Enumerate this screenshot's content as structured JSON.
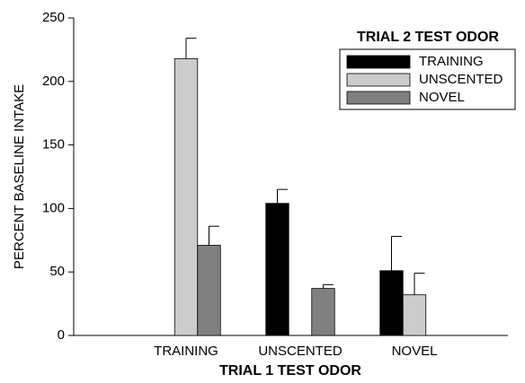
{
  "chart_data": {
    "type": "bar",
    "x_label": "TRIAL 1 TEST ODOR",
    "y_label": "PERCENT BASELINE INTAKE",
    "legend_title": "TRIAL 2 TEST ODOR",
    "legend_position": "upper right",
    "categories": [
      "TRAINING",
      "UNSCENTED",
      "NOVEL"
    ],
    "series": [
      {
        "name": "TRAINING",
        "color": "#000000",
        "values": [
          null,
          104,
          51
        ],
        "errors": [
          null,
          11,
          27
        ]
      },
      {
        "name": "UNSCENTED",
        "color": "#cccccc",
        "values": [
          218,
          null,
          32
        ],
        "errors": [
          16,
          null,
          17
        ]
      },
      {
        "name": "NOVEL",
        "color": "#808080",
        "values": [
          71,
          37,
          null
        ],
        "errors": [
          15,
          3,
          null
        ]
      }
    ],
    "ylim": [
      0,
      250
    ],
    "yticks": [
      0,
      50,
      100,
      150,
      200,
      250
    ],
    "grid": false
  }
}
